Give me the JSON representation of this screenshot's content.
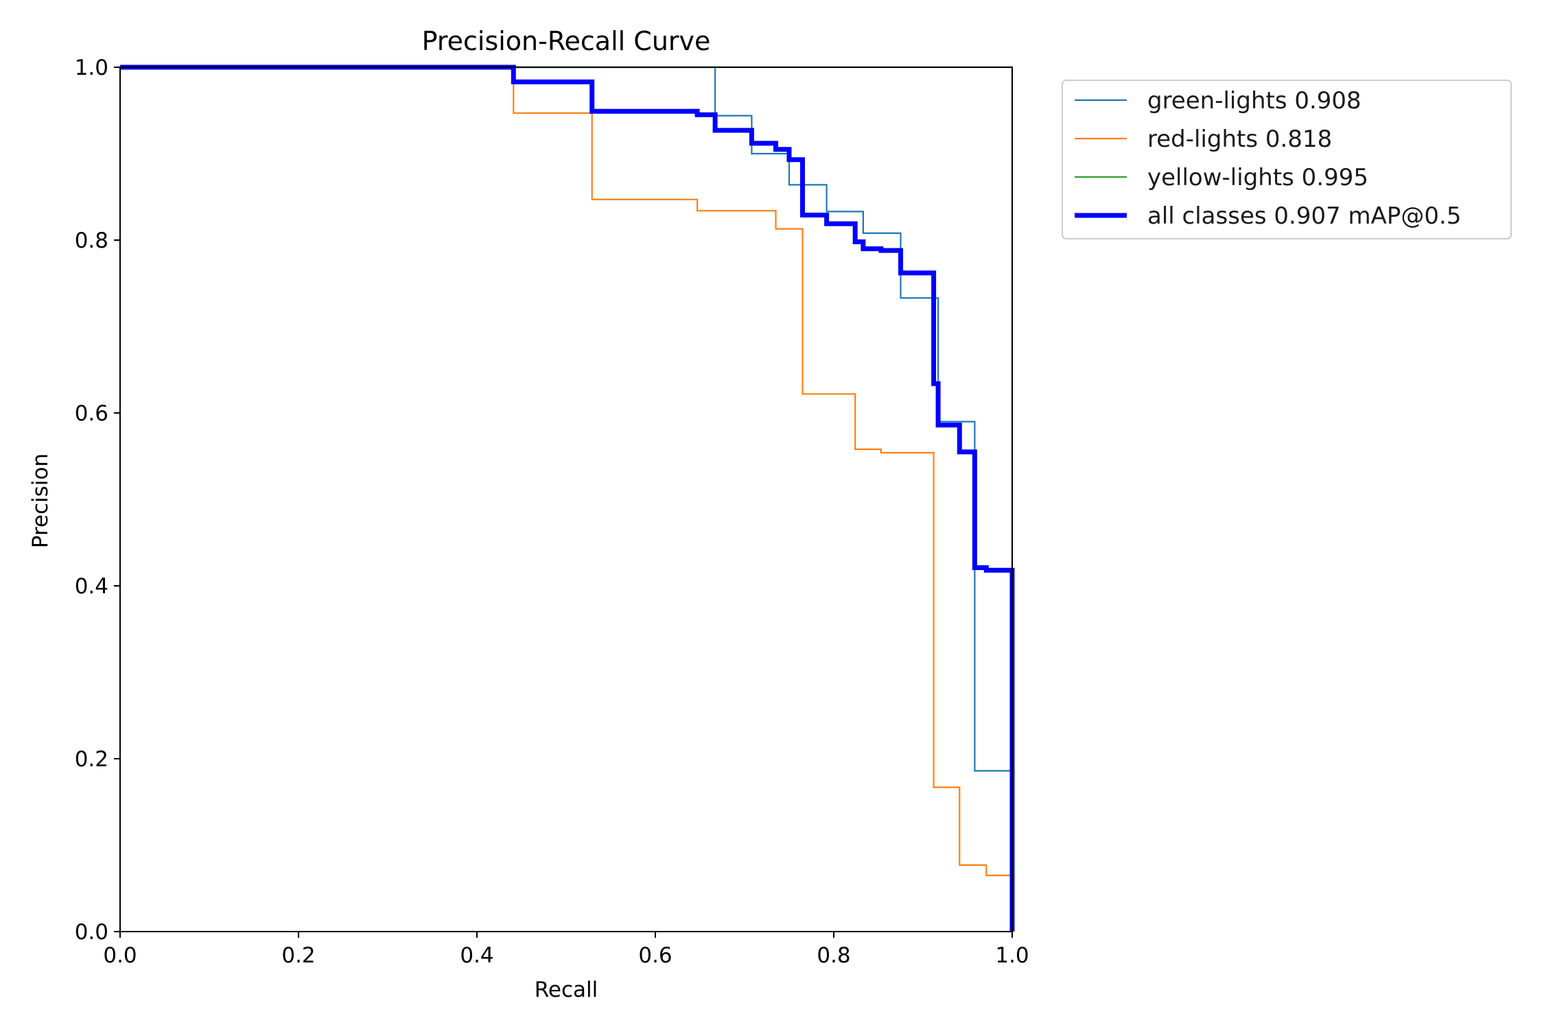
{
  "chart_data": {
    "type": "line",
    "title": "Precision-Recall Curve",
    "xlabel": "Recall",
    "ylabel": "Precision",
    "xlim": [
      0,
      1
    ],
    "ylim": [
      0,
      1
    ],
    "xticks": [
      "0.0",
      "0.2",
      "0.4",
      "0.6",
      "0.8",
      "1.0"
    ],
    "yticks": [
      "0.0",
      "0.2",
      "0.4",
      "0.6",
      "0.8",
      "1.0"
    ],
    "grid": false,
    "legend_position": "outside-top-right",
    "series": [
      {
        "name": "green-lights 0.908",
        "color": "#1f77b4",
        "width": "thin",
        "x": [
          0,
          0.667,
          0.667,
          0.708,
          0.708,
          0.75,
          0.75,
          0.792,
          0.792,
          0.833,
          0.833,
          0.875,
          0.875,
          0.917,
          0.917,
          0.958,
          0.958,
          1.0,
          1.0
        ],
        "y": [
          1.0,
          1.0,
          0.944,
          0.944,
          0.9,
          0.9,
          0.864,
          0.864,
          0.833,
          0.833,
          0.808,
          0.808,
          0.733,
          0.733,
          0.59,
          0.59,
          0.186,
          0.186,
          0.0
        ]
      },
      {
        "name": "red-lights 0.818",
        "color": "#ff7f0e",
        "width": "thin",
        "x": [
          0,
          0.441,
          0.441,
          0.529,
          0.529,
          0.647,
          0.647,
          0.735,
          0.735,
          0.765,
          0.765,
          0.824,
          0.824,
          0.853,
          0.853,
          0.912,
          0.912,
          0.941,
          0.941,
          0.971,
          0.971,
          1.0,
          1.0
        ],
        "y": [
          1.0,
          1.0,
          0.947,
          0.947,
          0.847,
          0.847,
          0.834,
          0.834,
          0.813,
          0.813,
          0.622,
          0.622,
          0.558,
          0.558,
          0.554,
          0.554,
          0.167,
          0.167,
          0.077,
          0.077,
          0.065,
          0.065,
          0.0
        ]
      },
      {
        "name": "yellow-lights 0.995",
        "color": "#2ca02c",
        "width": "thin",
        "x": [
          0,
          1.0,
          1.0
        ],
        "y": [
          1.0,
          1.0,
          0.0
        ]
      },
      {
        "name": "all classes 0.907 mAP@0.5",
        "color": "#0000ff",
        "width": "thick",
        "x": [
          0,
          0.441,
          0.441,
          0.529,
          0.529,
          0.647,
          0.647,
          0.667,
          0.667,
          0.708,
          0.708,
          0.735,
          0.735,
          0.75,
          0.75,
          0.765,
          0.765,
          0.792,
          0.792,
          0.824,
          0.824,
          0.833,
          0.833,
          0.853,
          0.853,
          0.875,
          0.875,
          0.912,
          0.912,
          0.917,
          0.917,
          0.941,
          0.941,
          0.958,
          0.958,
          0.971,
          0.971,
          1.0,
          1.0
        ],
        "y": [
          1.0,
          1.0,
          0.983,
          0.983,
          0.949,
          0.949,
          0.945,
          0.945,
          0.927,
          0.927,
          0.912,
          0.912,
          0.905,
          0.905,
          0.893,
          0.893,
          0.829,
          0.829,
          0.819,
          0.819,
          0.798,
          0.798,
          0.79,
          0.79,
          0.788,
          0.788,
          0.762,
          0.762,
          0.634,
          0.634,
          0.586,
          0.586,
          0.555,
          0.555,
          0.421,
          0.421,
          0.418,
          0.418,
          0.0
        ]
      }
    ]
  }
}
